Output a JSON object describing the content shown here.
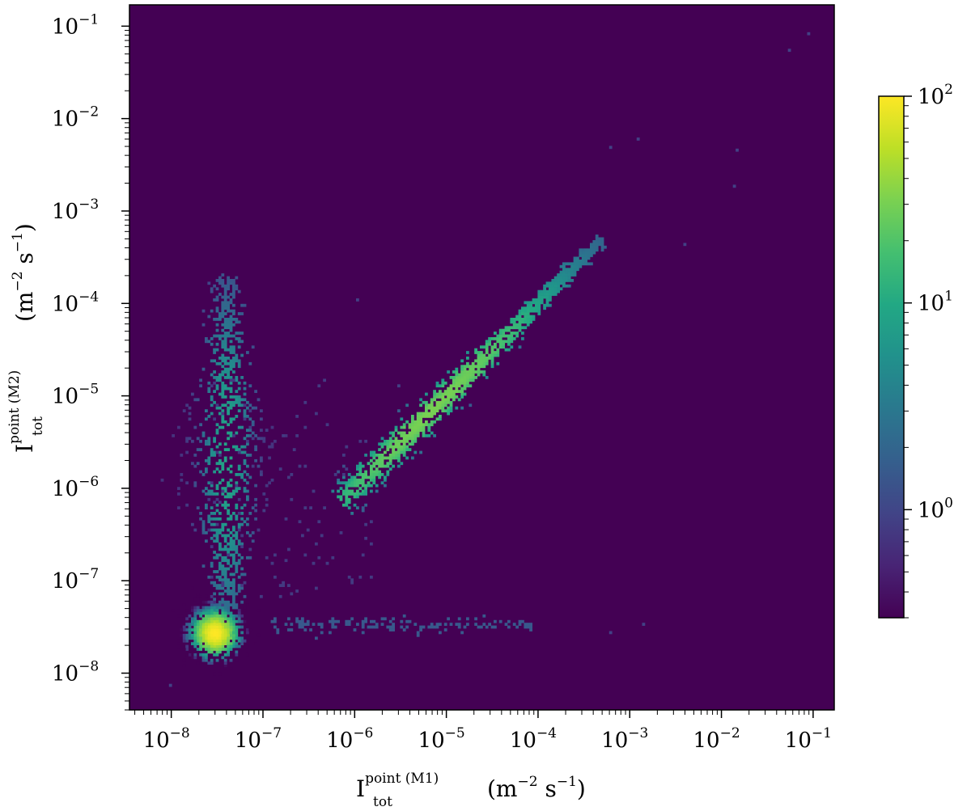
{
  "chart_data": {
    "type": "heatmap",
    "title": "",
    "xlabel": {
      "base": "I",
      "superscript": "point (M1)",
      "subscript": "tot",
      "unit_open": "(m",
      "unit_exp1": "−2",
      "unit_mid": " s",
      "unit_exp2": "−1",
      "unit_close": ")"
    },
    "ylabel": {
      "base": "I",
      "superscript": "point (M2)",
      "subscript": "tot",
      "unit_open": "(m",
      "unit_exp1": "−2",
      "unit_mid": " s",
      "unit_exp2": "−1",
      "unit_close": ")"
    },
    "xscale": "log",
    "yscale": "log",
    "xlim": [
      3.5e-09,
      0.17
    ],
    "ylim": [
      4e-09,
      0.17
    ],
    "xticks": [
      {
        "value": 1e-08,
        "base": "10",
        "exp": "−8"
      },
      {
        "value": 1e-07,
        "base": "10",
        "exp": "−7"
      },
      {
        "value": 1e-06,
        "base": "10",
        "exp": "−6"
      },
      {
        "value": 1e-05,
        "base": "10",
        "exp": "−5"
      },
      {
        "value": 0.0001,
        "base": "10",
        "exp": "−4"
      },
      {
        "value": 0.001,
        "base": "10",
        "exp": "−3"
      },
      {
        "value": 0.01,
        "base": "10",
        "exp": "−2"
      },
      {
        "value": 0.1,
        "base": "10",
        "exp": "−1"
      }
    ],
    "yticks": [
      {
        "value": 1e-08,
        "base": "10",
        "exp": "−8"
      },
      {
        "value": 1e-07,
        "base": "10",
        "exp": "−7"
      },
      {
        "value": 1e-06,
        "base": "10",
        "exp": "−6"
      },
      {
        "value": 1e-05,
        "base": "10",
        "exp": "−5"
      },
      {
        "value": 0.0001,
        "base": "10",
        "exp": "−4"
      },
      {
        "value": 0.001,
        "base": "10",
        "exp": "−3"
      },
      {
        "value": 0.01,
        "base": "10",
        "exp": "−2"
      },
      {
        "value": 0.1,
        "base": "10",
        "exp": "−1"
      }
    ],
    "colormap": "viridis",
    "background_color": "#440154",
    "grid": false,
    "colorbar": {
      "scale": "log",
      "range": [
        0.3,
        100
      ],
      "ticks": [
        {
          "value": 1,
          "base": "10",
          "exp": "0"
        },
        {
          "value": 10,
          "base": "10",
          "exp": "1"
        },
        {
          "value": 100,
          "base": "10",
          "exp": "2"
        }
      ]
    },
    "clusters": [
      {
        "type": "blob",
        "center_x": 3e-08,
        "center_y": 2.7e-08,
        "peak_count": 100
      },
      {
        "type": "line",
        "from": [
          7e-07,
          7e-07
        ],
        "to": [
          0.0005,
          0.0005
        ],
        "peak_count": 30
      },
      {
        "type": "vertical_plume",
        "x": 4e-08,
        "y_range": [
          5e-08,
          0.0002
        ],
        "peak_count": 8
      },
      {
        "type": "horizontal_tail",
        "y": 3.3e-08,
        "x_range": [
          1e-07,
          0.0001
        ],
        "peak_count": 1.5
      }
    ]
  }
}
